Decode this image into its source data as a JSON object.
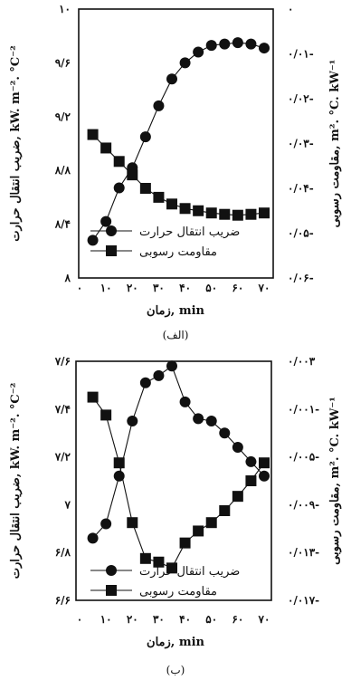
{
  "chart_data": [
    {
      "type": "line",
      "caption": "(الف)",
      "xlabel": "زمان, min",
      "ylabel_left": "ضریب انتقال حرارت, kW. m⁻². °C⁻²",
      "ylabel_right": "مقاومت رسوبی, m². °C. kW⁻¹",
      "x_ticks": [
        "۰",
        "۱۰",
        "۲۰",
        "۳۰",
        "۴۰",
        "۵۰",
        "۶۰",
        "۷۰"
      ],
      "y_left_ticks": [
        "۸",
        "۸/۴",
        "۸/۸",
        "۹/۲",
        "۹/۶",
        "۱۰"
      ],
      "y_right_ticks": [
        "۰",
        "۰/۰۱-",
        "۰/۰۲-",
        "۰/۰۳-",
        "۰/۰۴-",
        "۰/۰۵-",
        "۰/۰۶-"
      ],
      "xlim": [
        0,
        70
      ],
      "ylim_left": [
        8,
        10
      ],
      "ylim_right": [
        -0.06,
        0
      ],
      "series": [
        {
          "name": "ضریب انتقال حرارت",
          "marker": "circle",
          "axis": "left",
          "x": [
            5,
            10,
            15,
            20,
            25,
            30,
            35,
            40,
            45,
            50,
            55,
            60,
            65,
            70
          ],
          "y": [
            8.28,
            8.42,
            8.67,
            8.82,
            9.05,
            9.28,
            9.48,
            9.6,
            9.68,
            9.73,
            9.74,
            9.75,
            9.74,
            9.71
          ]
        },
        {
          "name": "مقاومت رسوبی",
          "marker": "square",
          "axis": "right",
          "x": [
            5,
            10,
            15,
            20,
            25,
            30,
            35,
            40,
            45,
            50,
            55,
            60,
            65,
            70
          ],
          "y": [
            -0.028,
            -0.031,
            -0.034,
            -0.037,
            -0.04,
            -0.042,
            -0.0435,
            -0.0445,
            -0.045,
            -0.0455,
            -0.0458,
            -0.046,
            -0.0458,
            -0.0455
          ]
        }
      ]
    },
    {
      "type": "line",
      "caption": "(ب)",
      "xlabel": "زمان, min",
      "ylabel_left": "ضریب انتقال حرارت, kW. m⁻². °C⁻²",
      "ylabel_right": "مقاومت رسوبی, m². °C. kW⁻¹",
      "x_ticks": [
        "۰",
        "۱۰",
        "۲۰",
        "۳۰",
        "۴۰",
        "۵۰",
        "۶۰",
        "۷۰"
      ],
      "y_left_ticks": [
        "۶/۶",
        "۶/۸",
        "۷",
        "۷/۲",
        "۷/۴",
        "۷/۶"
      ],
      "y_right_ticks": [
        "۰/۰۰۳",
        "۰/۰۰۱-",
        "۰/۰۰۵-",
        "۰/۰۰۹-",
        "۰/۰۱۳-",
        "۰/۰۱۷-"
      ],
      "xlim": [
        0,
        70
      ],
      "ylim_left": [
        6.6,
        7.6
      ],
      "ylim_right": [
        -0.017,
        0.003
      ],
      "series": [
        {
          "name": "ضریب انتقال حرارت",
          "marker": "circle",
          "axis": "left",
          "x": [
            5,
            10,
            15,
            20,
            25,
            30,
            35,
            40,
            45,
            50,
            55,
            60,
            65,
            70
          ],
          "y": [
            6.86,
            6.92,
            7.12,
            7.35,
            7.51,
            7.54,
            7.58,
            7.43,
            7.36,
            7.35,
            7.3,
            7.24,
            7.18,
            7.12
          ]
        },
        {
          "name": "مقاومت رسوبی",
          "marker": "square",
          "axis": "right",
          "x": [
            5,
            10,
            15,
            20,
            25,
            30,
            35,
            40,
            45,
            50,
            55,
            60,
            65,
            70
          ],
          "y": [
            0.0,
            -0.0015,
            -0.0055,
            -0.0105,
            -0.0135,
            -0.0138,
            -0.0143,
            -0.0122,
            -0.0112,
            -0.0105,
            -0.0095,
            -0.0083,
            -0.007,
            -0.0055
          ]
        }
      ]
    }
  ]
}
